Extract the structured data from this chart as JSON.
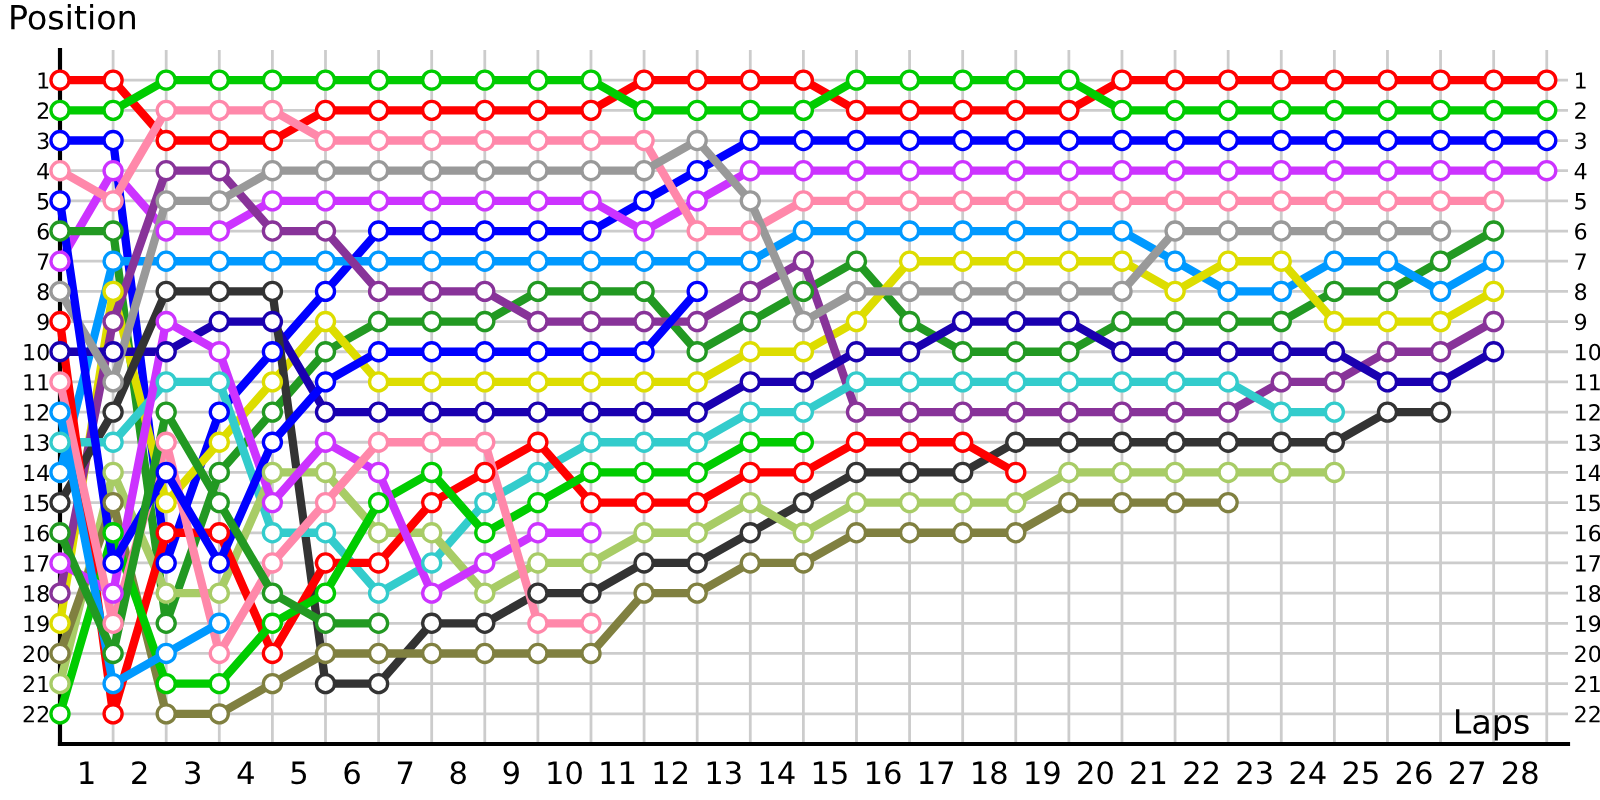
{
  "chart_data": {
    "type": "line",
    "xlabel": "Laps",
    "ylabel": "Position",
    "x": [
      0,
      1,
      2,
      3,
      4,
      5,
      6,
      7,
      8,
      9,
      10,
      11,
      12,
      13,
      14,
      15,
      16,
      17,
      18,
      19,
      20,
      21,
      22,
      23,
      24,
      25,
      26,
      27,
      28
    ],
    "xlim": [
      0,
      28.4
    ],
    "ylim": [
      23,
      0
    ],
    "xticks": [
      {
        "value": 0,
        "label": null
      },
      {
        "value": 0.5,
        "label": "1"
      },
      {
        "value": 1,
        "label": null
      },
      {
        "value": 1.5,
        "label": "2"
      },
      {
        "value": 2,
        "label": null
      },
      {
        "value": 2.5,
        "label": "3"
      },
      {
        "value": 3,
        "label": null
      },
      {
        "value": 3.5,
        "label": "4"
      },
      {
        "value": 4,
        "label": null
      },
      {
        "value": 4.5,
        "label": "5"
      },
      {
        "value": 5,
        "label": null
      },
      {
        "value": 5.5,
        "label": "6"
      },
      {
        "value": 6,
        "label": null
      },
      {
        "value": 6.5,
        "label": "7"
      },
      {
        "value": 7,
        "label": null
      },
      {
        "value": 7.5,
        "label": "8"
      },
      {
        "value": 8,
        "label": null
      },
      {
        "value": 8.5,
        "label": "9"
      },
      {
        "value": 9,
        "label": null
      },
      {
        "value": 9.5,
        "label": "10"
      },
      {
        "value": 10,
        "label": null
      },
      {
        "value": 10.5,
        "label": "11"
      },
      {
        "value": 11,
        "label": null
      },
      {
        "value": 11.5,
        "label": "12"
      },
      {
        "value": 12,
        "label": null
      },
      {
        "value": 12.5,
        "label": "13"
      },
      {
        "value": 13,
        "label": null
      },
      {
        "value": 13.5,
        "label": "14"
      },
      {
        "value": 14,
        "label": null
      },
      {
        "value": 14.5,
        "label": "15"
      },
      {
        "value": 15,
        "label": null
      },
      {
        "value": 15.5,
        "label": "16"
      },
      {
        "value": 16,
        "label": null
      },
      {
        "value": 16.5,
        "label": "17"
      },
      {
        "value": 17,
        "label": null
      },
      {
        "value": 17.5,
        "label": "18"
      },
      {
        "value": 18,
        "label": null
      },
      {
        "value": 18.5,
        "label": "19"
      },
      {
        "value": 19,
        "label": null
      },
      {
        "value": 19.5,
        "label": "20"
      },
      {
        "value": 20,
        "label": null
      },
      {
        "value": 20.5,
        "label": "21"
      },
      {
        "value": 21,
        "label": null
      },
      {
        "value": 21.5,
        "label": "22"
      },
      {
        "value": 22,
        "label": null
      },
      {
        "value": 22.5,
        "label": "23"
      },
      {
        "value": 23,
        "label": null
      },
      {
        "value": 23.5,
        "label": "24"
      },
      {
        "value": 24,
        "label": null
      },
      {
        "value": 24.5,
        "label": "25"
      },
      {
        "value": 25,
        "label": null
      },
      {
        "value": 25.5,
        "label": "26"
      },
      {
        "value": 26,
        "label": null
      },
      {
        "value": 26.5,
        "label": "27"
      },
      {
        "value": 27,
        "label": null
      },
      {
        "value": 27.5,
        "label": "28"
      },
      {
        "value": 28,
        "label": null
      }
    ],
    "yticks": [
      1,
      2,
      3,
      4,
      5,
      6,
      7,
      8,
      9,
      10,
      11,
      12,
      13,
      14,
      15,
      16,
      17,
      18,
      19,
      20,
      21,
      22
    ],
    "y2lim": [
      23,
      0
    ],
    "y2ticks": [
      1,
      2,
      3,
      4,
      5,
      6,
      7,
      8,
      9,
      10,
      11,
      12,
      13,
      14,
      15,
      16,
      17,
      18,
      19,
      20,
      21,
      22
    ],
    "grid": true,
    "marker": "circle",
    "line_style": "solid",
    "series": [
      {
        "color": "#ff0000",
        "values": [
          1,
          1,
          3,
          3,
          3,
          2,
          2,
          2,
          2,
          2,
          2,
          1,
          1,
          1,
          1,
          2,
          2,
          2,
          2,
          2,
          1,
          1,
          1,
          1,
          1,
          1,
          1,
          1,
          1
        ]
      },
      {
        "color": "#00cc00",
        "values": [
          2,
          2,
          1,
          1,
          1,
          1,
          1,
          1,
          1,
          1,
          1,
          2,
          2,
          2,
          2,
          1,
          1,
          1,
          1,
          1,
          2,
          2,
          2,
          2,
          2,
          2,
          2,
          2,
          2
        ]
      },
      {
        "color": "#0000ff",
        "values": [
          3,
          3,
          17,
          12,
          10,
          8,
          6,
          6,
          6,
          6,
          6,
          5,
          4,
          3,
          3,
          3,
          3,
          3,
          3,
          3,
          3,
          3,
          3,
          3,
          3,
          3,
          3,
          3,
          3
        ]
      },
      {
        "color": "#cc33ff",
        "values": [
          7,
          4,
          6,
          6,
          5,
          5,
          5,
          5,
          5,
          5,
          5,
          6,
          5,
          4,
          4,
          4,
          4,
          4,
          4,
          4,
          4,
          4,
          4,
          4,
          4,
          4,
          4,
          4,
          4
        ]
      },
      {
        "color": "#ff88aa",
        "values": [
          4,
          5,
          2,
          2,
          2,
          3,
          3,
          3,
          3,
          3,
          3,
          3,
          6,
          6,
          5,
          5,
          5,
          5,
          5,
          5,
          5,
          5,
          5,
          5,
          5,
          5,
          5,
          5,
          null
        ]
      },
      {
        "color": "#229922",
        "values": [
          6,
          6,
          19,
          14,
          12,
          10,
          9,
          9,
          9,
          8,
          8,
          8,
          10,
          9,
          8,
          7,
          9,
          10,
          10,
          10,
          9,
          9,
          9,
          9,
          8,
          8,
          7,
          6,
          null
        ]
      },
      {
        "color": "#0099ff",
        "values": [
          14,
          7,
          7,
          7,
          7,
          7,
          7,
          7,
          7,
          7,
          7,
          7,
          7,
          7,
          6,
          6,
          6,
          6,
          6,
          6,
          6,
          7,
          8,
          8,
          7,
          7,
          8,
          7,
          null
        ]
      },
      {
        "color": "#dddd00",
        "values": [
          19,
          8,
          15,
          13,
          11,
          9,
          11,
          11,
          11,
          11,
          11,
          11,
          11,
          10,
          10,
          9,
          7,
          7,
          7,
          7,
          7,
          8,
          7,
          7,
          9,
          9,
          9,
          8,
          null
        ]
      },
      {
        "color": "#883399",
        "values": [
          18,
          9,
          4,
          4,
          6,
          6,
          8,
          8,
          8,
          9,
          9,
          9,
          9,
          8,
          7,
          12,
          12,
          12,
          12,
          12,
          12,
          12,
          12,
          11,
          11,
          10,
          10,
          9,
          null
        ]
      },
      {
        "color": "#1a00b0",
        "values": [
          10,
          10,
          10,
          9,
          9,
          12,
          12,
          12,
          12,
          12,
          12,
          12,
          12,
          11,
          11,
          10,
          10,
          9,
          9,
          9,
          10,
          10,
          10,
          10,
          10,
          11,
          11,
          10,
          null
        ]
      },
      {
        "color": "#999999",
        "values": [
          8,
          11,
          5,
          5,
          4,
          4,
          4,
          4,
          4,
          4,
          4,
          4,
          3,
          5,
          9,
          8,
          8,
          8,
          8,
          8,
          8,
          6,
          6,
          6,
          6,
          6,
          6,
          null,
          null
        ]
      },
      {
        "color": "#333333",
        "values": [
          15,
          12,
          8,
          8,
          8,
          21,
          21,
          19,
          19,
          18,
          18,
          17,
          17,
          16,
          15,
          14,
          14,
          14,
          13,
          13,
          13,
          13,
          13,
          13,
          13,
          12,
          12,
          null,
          null
        ]
      },
      {
        "color": "#33cccc",
        "values": [
          13,
          13,
          11,
          11,
          16,
          16,
          18,
          17,
          15,
          14,
          13,
          13,
          13,
          12,
          12,
          11,
          11,
          11,
          11,
          11,
          11,
          11,
          11,
          12,
          12,
          null,
          null,
          null,
          null
        ]
      },
      {
        "color": "#a8cc66",
        "values": [
          21,
          14,
          18,
          18,
          14,
          14,
          16,
          16,
          18,
          17,
          17,
          16,
          16,
          15,
          16,
          15,
          15,
          15,
          15,
          14,
          14,
          14,
          14,
          14,
          14,
          null,
          null,
          null,
          null
        ]
      },
      {
        "color": "#808040",
        "values": [
          20,
          15,
          22,
          22,
          21,
          20,
          20,
          20,
          20,
          20,
          20,
          18,
          18,
          17,
          17,
          16,
          16,
          16,
          16,
          15,
          15,
          15,
          15,
          null,
          null,
          null,
          null,
          null,
          null
        ]
      },
      {
        "color": "#ff0000",
        "values": [
          9,
          22,
          16,
          16,
          20,
          17,
          17,
          15,
          14,
          13,
          15,
          15,
          15,
          14,
          14,
          13,
          13,
          13,
          14,
          null,
          null,
          null,
          null,
          null,
          null,
          null,
          null,
          null,
          null
        ]
      },
      {
        "color": "#00cc00",
        "values": [
          22,
          16,
          21,
          21,
          19,
          18,
          15,
          14,
          16,
          15,
          14,
          14,
          14,
          13,
          13,
          null,
          null,
          null,
          null,
          null,
          null,
          null,
          null,
          null,
          null,
          null,
          null,
          null,
          null
        ]
      },
      {
        "color": "#cc33ff",
        "values": [
          17,
          18,
          9,
          10,
          15,
          13,
          14,
          18,
          17,
          16,
          16,
          null,
          null,
          null,
          null,
          null,
          null,
          null,
          null,
          null,
          null,
          null,
          null,
          null,
          null,
          null,
          null,
          null,
          null
        ]
      },
      {
        "color": "#ff88aa",
        "values": [
          11,
          19,
          13,
          20,
          17,
          15,
          13,
          13,
          13,
          19,
          19,
          null,
          null,
          null,
          null,
          null,
          null,
          null,
          null,
          null,
          null,
          null,
          null,
          null,
          null,
          null,
          null,
          null,
          null
        ]
      },
      {
        "color": "#0000ff",
        "values": [
          5,
          17,
          14,
          17,
          13,
          11,
          10,
          10,
          10,
          10,
          10,
          10,
          8,
          null,
          null,
          null,
          null,
          null,
          null,
          null,
          null,
          null,
          null,
          null,
          null,
          null,
          null,
          null,
          null
        ]
      },
      {
        "color": "#0099ff",
        "values": [
          12,
          21,
          20,
          19,
          null,
          null,
          null,
          null,
          null,
          null,
          null,
          null,
          null,
          null,
          null,
          null,
          null,
          null,
          null,
          null,
          null,
          null,
          null,
          null,
          null,
          null,
          null,
          null,
          null
        ]
      },
      {
        "color": "#229922",
        "values": [
          16,
          20,
          12,
          15,
          18,
          19,
          19,
          null,
          null,
          null,
          null,
          null,
          null,
          null,
          null,
          null,
          null,
          null,
          null,
          null,
          null,
          null,
          null,
          null,
          null,
          null,
          null,
          null,
          null
        ]
      }
    ]
  }
}
